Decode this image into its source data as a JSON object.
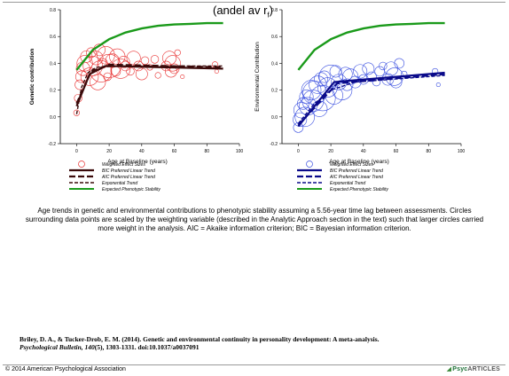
{
  "header": {
    "partial_title": "(andel av r",
    "partial_title_sub": "f",
    "partial_title_end": ")"
  },
  "chart_data": [
    {
      "type": "scatter",
      "title": "",
      "xlabel": "Age at Baseline (years)",
      "ylabel": "Genetic contribution",
      "xlim": [
        -10,
        100
      ],
      "ylim": [
        -0.2,
        0.8
      ],
      "x_ticks": [
        "0",
        "20",
        "40",
        "60",
        "80",
        "100"
      ],
      "y_ticks": [
        "-0.2",
        "0.0",
        "0.2",
        "0.4",
        "0.6",
        "0.8"
      ],
      "grid": false,
      "legend_position": "below",
      "colors": {
        "points": "#e83030",
        "trend": "#3b0a0a",
        "stability": "#1a9a1a"
      },
      "series": [
        {
          "name": "Weighted Effect Sizes",
          "kind": "circles",
          "points": [
            [
              0,
              0.03,
              6
            ],
            [
              1,
              0.14,
              8
            ],
            [
              2,
              0.24,
              10
            ],
            [
              3,
              0.3,
              12
            ],
            [
              4,
              0.36,
              14
            ],
            [
              5,
              0.4,
              16
            ],
            [
              6,
              0.45,
              12
            ],
            [
              8,
              0.3,
              18
            ],
            [
              9,
              0.48,
              10
            ],
            [
              10,
              0.38,
              20
            ],
            [
              12,
              0.44,
              14
            ],
            [
              13,
              0.26,
              16
            ],
            [
              14,
              0.5,
              12
            ],
            [
              15,
              0.34,
              22
            ],
            [
              16,
              0.4,
              10
            ],
            [
              18,
              0.46,
              18
            ],
            [
              19,
              0.3,
              8
            ],
            [
              20,
              0.38,
              24
            ],
            [
              22,
              0.42,
              14
            ],
            [
              24,
              0.34,
              10
            ],
            [
              25,
              0.45,
              16
            ],
            [
              27,
              0.36,
              20
            ],
            [
              29,
              0.41,
              12
            ],
            [
              30,
              0.38,
              10
            ],
            [
              33,
              0.34,
              8
            ],
            [
              35,
              0.44,
              14
            ],
            [
              38,
              0.38,
              10
            ],
            [
              40,
              0.32,
              12
            ],
            [
              42,
              0.42,
              8
            ],
            [
              45,
              0.37,
              6
            ],
            [
              48,
              0.43,
              8
            ],
            [
              50,
              0.31,
              6
            ],
            [
              55,
              0.38,
              10
            ],
            [
              57,
              0.44,
              14
            ],
            [
              58,
              0.34,
              12
            ],
            [
              59,
              0.4,
              16
            ],
            [
              60,
              0.36,
              10
            ],
            [
              62,
              0.48,
              6
            ],
            [
              65,
              0.3,
              4
            ],
            [
              85,
              0.39,
              6
            ],
            [
              86,
              0.34,
              4
            ]
          ]
        },
        {
          "name": "BIC Preferred Linear Trend",
          "kind": "line",
          "style": "solid",
          "points": [
            [
              0,
              0.08
            ],
            [
              8,
              0.32
            ],
            [
              18,
              0.38
            ],
            [
              90,
              0.36
            ]
          ]
        },
        {
          "name": "AIC Preferred Linear Trend",
          "kind": "line",
          "style": "dashed",
          "points": [
            [
              0,
              0.1
            ],
            [
              9,
              0.34
            ],
            [
              20,
              0.39
            ],
            [
              90,
              0.37
            ]
          ]
        },
        {
          "name": "Exponential Trend",
          "kind": "line",
          "style": "dashed-thin",
          "points": [
            [
              0,
              0.02
            ],
            [
              3,
              0.22
            ],
            [
              7,
              0.33
            ],
            [
              12,
              0.37
            ],
            [
              25,
              0.38
            ],
            [
              90,
              0.38
            ]
          ]
        },
        {
          "name": "Expected Phenotypic Stability",
          "kind": "line",
          "style": "solid",
          "points": [
            [
              0,
              0.35
            ],
            [
              10,
              0.5
            ],
            [
              20,
              0.58
            ],
            [
              30,
              0.63
            ],
            [
              40,
              0.66
            ],
            [
              50,
              0.68
            ],
            [
              60,
              0.69
            ],
            [
              70,
              0.695
            ],
            [
              80,
              0.7
            ],
            [
              90,
              0.7
            ]
          ]
        }
      ]
    },
    {
      "type": "scatter",
      "title": "",
      "xlabel": "Age at Baseline (years)",
      "ylabel": "Environmental Contribution",
      "xlim": [
        -10,
        100
      ],
      "ylim": [
        -0.2,
        0.8
      ],
      "x_ticks": [
        "0",
        "20",
        "40",
        "60",
        "80",
        "100"
      ],
      "y_ticks": [
        "-0.2",
        "0.0",
        "0.2",
        "0.4",
        "0.6",
        "0.8"
      ],
      "grid": false,
      "legend_position": "below",
      "colors": {
        "points": "#3a4fe0",
        "trend": "#0a0a8a",
        "stability": "#1a9a1a"
      },
      "series": [
        {
          "name": "Weighted Effect Sizes",
          "kind": "circles",
          "points": [
            [
              0,
              -0.08,
              10
            ],
            [
              1,
              -0.02,
              14
            ],
            [
              2,
              0.05,
              16
            ],
            [
              3,
              0.1,
              12
            ],
            [
              4,
              0.0,
              20
            ],
            [
              5,
              0.15,
              14
            ],
            [
              6,
              0.08,
              18
            ],
            [
              8,
              0.2,
              20
            ],
            [
              9,
              0.12,
              22
            ],
            [
              10,
              0.18,
              24
            ],
            [
              12,
              0.24,
              18
            ],
            [
              13,
              0.06,
              16
            ],
            [
              14,
              0.28,
              14
            ],
            [
              15,
              0.14,
              26
            ],
            [
              16,
              0.3,
              12
            ],
            [
              18,
              0.22,
              20
            ],
            [
              20,
              0.3,
              24
            ],
            [
              22,
              0.16,
              18
            ],
            [
              23,
              0.34,
              12
            ],
            [
              25,
              0.26,
              16
            ],
            [
              27,
              0.2,
              20
            ],
            [
              29,
              0.32,
              14
            ],
            [
              30,
              0.24,
              12
            ],
            [
              32,
              0.3,
              16
            ],
            [
              35,
              0.26,
              12
            ],
            [
              38,
              0.34,
              14
            ],
            [
              40,
              0.28,
              10
            ],
            [
              43,
              0.36,
              12
            ],
            [
              45,
              0.3,
              10
            ],
            [
              48,
              0.26,
              8
            ],
            [
              50,
              0.34,
              10
            ],
            [
              52,
              0.38,
              8
            ],
            [
              55,
              0.28,
              12
            ],
            [
              57,
              0.36,
              14
            ],
            [
              59,
              0.3,
              18
            ],
            [
              60,
              0.26,
              12
            ],
            [
              62,
              0.4,
              10
            ],
            [
              65,
              0.32,
              6
            ],
            [
              84,
              0.34,
              6
            ],
            [
              86,
              0.24,
              4
            ]
          ]
        },
        {
          "name": "BIC Preferred Linear Trend",
          "kind": "line",
          "style": "solid",
          "points": [
            [
              0,
              -0.07
            ],
            [
              22,
              0.26
            ],
            [
              90,
              0.33
            ]
          ]
        },
        {
          "name": "AIC Preferred Linear Trend",
          "kind": "line",
          "style": "dashed",
          "points": [
            [
              0,
              -0.06
            ],
            [
              24,
              0.25
            ],
            [
              90,
              0.32
            ]
          ]
        },
        {
          "name": "Exponential Trend",
          "kind": "line",
          "style": "dashed-thin",
          "points": [
            [
              0,
              -0.05
            ],
            [
              10,
              0.1
            ],
            [
              20,
              0.2
            ],
            [
              35,
              0.26
            ],
            [
              90,
              0.31
            ]
          ]
        },
        {
          "name": "Expected Phenotypic Stability",
          "kind": "line",
          "style": "solid",
          "points": [
            [
              0,
              0.35
            ],
            [
              10,
              0.5
            ],
            [
              20,
              0.58
            ],
            [
              30,
              0.63
            ],
            [
              40,
              0.66
            ],
            [
              50,
              0.68
            ],
            [
              60,
              0.69
            ],
            [
              70,
              0.695
            ],
            [
              80,
              0.7
            ],
            [
              90,
              0.7
            ]
          ]
        }
      ]
    }
  ],
  "caption": "Age trends in genetic and environmental contributions to phenotypic stability assuming a 5.56-year time lag between assessments. Circles surrounding data points are scaled by the weighting variable (described in the Analytic Approach section in the text) such that larger circles carried more weight in the analysis. AIC = Akaike information criterion; BIC = Bayesian information criterion.",
  "citation": {
    "authors": "Briley, D. A., & Tucker-Drob, E. M. (2014). Genetic and environmental continuity in personality development: A meta-analysis.",
    "journal": "Psychological Bulletin, 140",
    "details": "(5), 1303-1331. doi:10.1037/a0037091"
  },
  "footer": {
    "copyright": "© 2014 American Psychological Association",
    "brand_psyc": "Psyc",
    "brand_articles": "ARTICLES",
    "brand_mark": "◢"
  }
}
